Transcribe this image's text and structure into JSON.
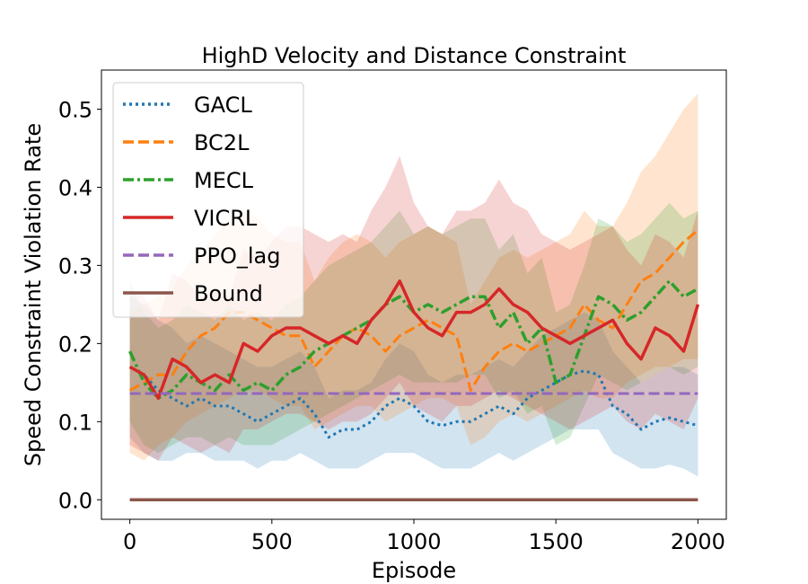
{
  "chart_data": {
    "type": "line",
    "title": "HighD Velocity and Distance Constraint",
    "xlabel": "Episode",
    "ylabel": "Speed Constraint Violation Rate",
    "xlim": [
      -100,
      2100
    ],
    "ylim": [
      -0.025,
      0.55
    ],
    "xticks": [
      0,
      500,
      1000,
      1500,
      2000
    ],
    "xtick_labels": [
      "0",
      "500",
      "1000",
      "1500",
      "2000"
    ],
    "yticks": [
      0.0,
      0.1,
      0.2,
      0.3,
      0.4,
      0.5
    ],
    "ytick_labels": [
      "0.0",
      "0.1",
      "0.2",
      "0.3",
      "0.4",
      "0.5"
    ],
    "legend_position": "top-left",
    "x": [
      0,
      50,
      100,
      150,
      200,
      250,
      300,
      350,
      400,
      450,
      500,
      550,
      600,
      650,
      700,
      750,
      800,
      850,
      900,
      950,
      1000,
      1050,
      1100,
      1150,
      1200,
      1250,
      1300,
      1350,
      1400,
      1450,
      1500,
      1550,
      1600,
      1650,
      1700,
      1750,
      1800,
      1850,
      1900,
      1950,
      2000
    ],
    "series": [
      {
        "name": "GACL",
        "color": "#1f77b4",
        "style": "dotted",
        "values": [
          0.17,
          0.16,
          0.14,
          0.13,
          0.12,
          0.13,
          0.12,
          0.12,
          0.11,
          0.1,
          0.11,
          0.12,
          0.13,
          0.11,
          0.08,
          0.09,
          0.09,
          0.1,
          0.12,
          0.13,
          0.12,
          0.1,
          0.095,
          0.1,
          0.1,
          0.11,
          0.12,
          0.11,
          0.13,
          0.14,
          0.15,
          0.16,
          0.165,
          0.16,
          0.12,
          0.11,
          0.09,
          0.1,
          0.105,
          0.1,
          0.095
        ],
        "lower": [
          0.08,
          0.06,
          0.05,
          0.05,
          0.06,
          0.06,
          0.05,
          0.05,
          0.05,
          0.04,
          0.05,
          0.05,
          0.06,
          0.05,
          0.04,
          0.04,
          0.04,
          0.05,
          0.06,
          0.06,
          0.06,
          0.05,
          0.04,
          0.04,
          0.04,
          0.05,
          0.06,
          0.05,
          0.06,
          0.07,
          0.08,
          0.09,
          0.09,
          0.09,
          0.06,
          0.05,
          0.04,
          0.04,
          0.045,
          0.04,
          0.03
        ],
        "upper": [
          0.26,
          0.25,
          0.23,
          0.22,
          0.2,
          0.21,
          0.2,
          0.19,
          0.18,
          0.17,
          0.17,
          0.18,
          0.19,
          0.17,
          0.13,
          0.14,
          0.14,
          0.15,
          0.18,
          0.2,
          0.19,
          0.16,
          0.15,
          0.16,
          0.16,
          0.17,
          0.18,
          0.17,
          0.19,
          0.21,
          0.22,
          0.23,
          0.24,
          0.23,
          0.19,
          0.17,
          0.15,
          0.16,
          0.17,
          0.17,
          0.16
        ]
      },
      {
        "name": "BC2L",
        "color": "#ff7f0e",
        "style": "dashed",
        "values": [
          0.14,
          0.15,
          0.16,
          0.16,
          0.19,
          0.21,
          0.22,
          0.24,
          0.24,
          0.23,
          0.22,
          0.21,
          0.21,
          0.17,
          0.19,
          0.21,
          0.22,
          0.21,
          0.19,
          0.21,
          0.22,
          0.23,
          0.22,
          0.21,
          0.14,
          0.17,
          0.19,
          0.2,
          0.19,
          0.2,
          0.21,
          0.22,
          0.25,
          0.23,
          0.22,
          0.25,
          0.28,
          0.29,
          0.31,
          0.33,
          0.345
        ],
        "lower": [
          0.06,
          0.05,
          0.07,
          0.08,
          0.1,
          0.11,
          0.12,
          0.13,
          0.14,
          0.14,
          0.13,
          0.12,
          0.12,
          0.09,
          0.1,
          0.11,
          0.12,
          0.12,
          0.1,
          0.11,
          0.12,
          0.13,
          0.13,
          0.12,
          0.07,
          0.08,
          0.1,
          0.11,
          0.1,
          0.11,
          0.12,
          0.13,
          0.14,
          0.13,
          0.13,
          0.15,
          0.16,
          0.17,
          0.17,
          0.18,
          0.18
        ],
        "upper": [
          0.24,
          0.25,
          0.26,
          0.27,
          0.3,
          0.32,
          0.34,
          0.36,
          0.37,
          0.36,
          0.34,
          0.33,
          0.33,
          0.28,
          0.31,
          0.33,
          0.34,
          0.33,
          0.31,
          0.33,
          0.34,
          0.35,
          0.34,
          0.33,
          0.25,
          0.28,
          0.31,
          0.32,
          0.31,
          0.32,
          0.33,
          0.34,
          0.37,
          0.35,
          0.35,
          0.38,
          0.42,
          0.44,
          0.47,
          0.5,
          0.52
        ]
      },
      {
        "name": "MECL",
        "color": "#2ca02c",
        "style": "dashdot",
        "values": [
          0.19,
          0.15,
          0.13,
          0.14,
          0.16,
          0.15,
          0.14,
          0.16,
          0.14,
          0.15,
          0.14,
          0.16,
          0.17,
          0.19,
          0.2,
          0.21,
          0.22,
          0.23,
          0.25,
          0.26,
          0.24,
          0.25,
          0.24,
          0.25,
          0.26,
          0.26,
          0.22,
          0.24,
          0.2,
          0.22,
          0.15,
          0.16,
          0.21,
          0.26,
          0.25,
          0.23,
          0.24,
          0.26,
          0.28,
          0.26,
          0.27
        ],
        "lower": [
          0.1,
          0.07,
          0.06,
          0.07,
          0.08,
          0.08,
          0.07,
          0.08,
          0.07,
          0.07,
          0.07,
          0.08,
          0.09,
          0.1,
          0.11,
          0.12,
          0.13,
          0.14,
          0.15,
          0.16,
          0.15,
          0.15,
          0.15,
          0.15,
          0.16,
          0.16,
          0.13,
          0.14,
          0.11,
          0.12,
          0.07,
          0.08,
          0.12,
          0.16,
          0.15,
          0.14,
          0.15,
          0.16,
          0.17,
          0.16,
          0.17
        ],
        "upper": [
          0.28,
          0.24,
          0.22,
          0.23,
          0.25,
          0.24,
          0.23,
          0.25,
          0.23,
          0.24,
          0.23,
          0.25,
          0.26,
          0.28,
          0.3,
          0.31,
          0.32,
          0.33,
          0.35,
          0.37,
          0.34,
          0.35,
          0.34,
          0.35,
          0.36,
          0.36,
          0.32,
          0.34,
          0.29,
          0.31,
          0.24,
          0.25,
          0.3,
          0.36,
          0.35,
          0.33,
          0.34,
          0.36,
          0.38,
          0.36,
          0.37
        ]
      },
      {
        "name": "VICRL",
        "color": "#d62728",
        "style": "solid",
        "values": [
          0.17,
          0.16,
          0.13,
          0.18,
          0.17,
          0.15,
          0.16,
          0.15,
          0.2,
          0.19,
          0.21,
          0.22,
          0.22,
          0.21,
          0.2,
          0.21,
          0.2,
          0.23,
          0.25,
          0.28,
          0.24,
          0.22,
          0.21,
          0.24,
          0.24,
          0.25,
          0.27,
          0.25,
          0.24,
          0.22,
          0.21,
          0.2,
          0.21,
          0.22,
          0.23,
          0.2,
          0.18,
          0.22,
          0.21,
          0.19,
          0.25
        ],
        "lower": [
          0.07,
          0.06,
          0.05,
          0.08,
          0.07,
          0.06,
          0.07,
          0.06,
          0.09,
          0.09,
          0.1,
          0.11,
          0.11,
          0.1,
          0.09,
          0.1,
          0.1,
          0.11,
          0.13,
          0.15,
          0.12,
          0.11,
          0.1,
          0.12,
          0.12,
          0.13,
          0.14,
          0.13,
          0.12,
          0.11,
          0.1,
          0.09,
          0.1,
          0.11,
          0.12,
          0.1,
          0.09,
          0.11,
          0.1,
          0.09,
          0.13
        ],
        "upper": [
          0.27,
          0.26,
          0.23,
          0.29,
          0.28,
          0.26,
          0.27,
          0.26,
          0.32,
          0.31,
          0.33,
          0.35,
          0.35,
          0.34,
          0.33,
          0.34,
          0.33,
          0.37,
          0.4,
          0.44,
          0.38,
          0.35,
          0.34,
          0.37,
          0.37,
          0.38,
          0.41,
          0.38,
          0.37,
          0.34,
          0.33,
          0.32,
          0.33,
          0.34,
          0.35,
          0.32,
          0.3,
          0.34,
          0.33,
          0.31,
          0.37
        ]
      },
      {
        "name": "PPO_lag",
        "color": "#9467bd",
        "style": "dashed",
        "values": [
          0.136,
          0.136,
          0.136,
          0.136,
          0.136,
          0.136,
          0.136,
          0.136,
          0.136,
          0.136,
          0.136,
          0.136,
          0.136,
          0.136,
          0.136,
          0.136,
          0.136,
          0.136,
          0.136,
          0.136,
          0.136,
          0.136,
          0.136,
          0.136,
          0.136,
          0.136,
          0.136,
          0.136,
          0.136,
          0.136,
          0.136,
          0.136,
          0.136,
          0.136,
          0.136,
          0.136,
          0.136,
          0.136,
          0.136,
          0.136,
          0.136
        ]
      },
      {
        "name": "Bound",
        "color": "#8c564b",
        "style": "solid",
        "values": [
          0.0,
          0.0,
          0.0,
          0.0,
          0.0,
          0.0,
          0.0,
          0.0,
          0.0,
          0.0,
          0.0,
          0.0,
          0.0,
          0.0,
          0.0,
          0.0,
          0.0,
          0.0,
          0.0,
          0.0,
          0.0,
          0.0,
          0.0,
          0.0,
          0.0,
          0.0,
          0.0,
          0.0,
          0.0,
          0.0,
          0.0,
          0.0,
          0.0,
          0.0,
          0.0,
          0.0,
          0.0,
          0.0,
          0.0,
          0.0,
          0.0
        ]
      }
    ]
  }
}
